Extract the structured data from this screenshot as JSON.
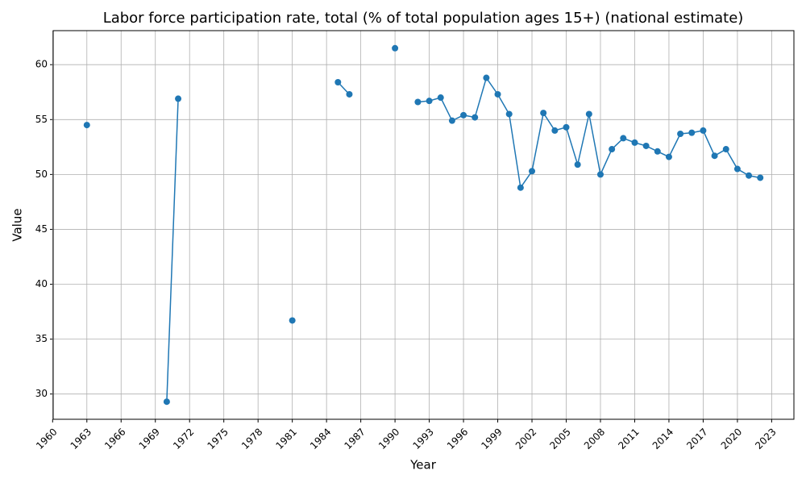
{
  "chart_data": {
    "type": "line",
    "title": "Labor force participation rate, total (% of total population ages 15+) (national estimate)",
    "xlabel": "Year",
    "ylabel": "Value",
    "x": [
      1963,
      1964,
      1965,
      1966,
      1967,
      1968,
      1969,
      1970,
      1971,
      1972,
      1973,
      1974,
      1975,
      1976,
      1977,
      1978,
      1979,
      1980,
      1981,
      1982,
      1983,
      1984,
      1985,
      1986,
      1987,
      1988,
      1989,
      1990,
      1991,
      1992,
      1993,
      1994,
      1995,
      1996,
      1997,
      1998,
      1999,
      2000,
      2001,
      2002,
      2003,
      2004,
      2005,
      2006,
      2007,
      2008,
      2009,
      2010,
      2011,
      2012,
      2013,
      2014,
      2015,
      2016,
      2017,
      2018,
      2019,
      2020,
      2021,
      2022
    ],
    "series": [
      {
        "name": "Value",
        "color": "#1f77b4",
        "values": [
          54.5,
          null,
          null,
          null,
          null,
          null,
          null,
          29.3,
          56.9,
          null,
          null,
          null,
          null,
          null,
          null,
          null,
          null,
          null,
          36.7,
          null,
          null,
          null,
          58.4,
          57.3,
          null,
          null,
          null,
          61.5,
          null,
          56.6,
          56.7,
          57.0,
          54.9,
          55.4,
          55.2,
          58.8,
          57.3,
          55.5,
          48.8,
          50.3,
          55.6,
          54.0,
          54.3,
          50.9,
          55.5,
          50.0,
          52.3,
          53.3,
          52.9,
          52.6,
          52.1,
          51.6,
          53.7,
          53.8,
          54.0,
          51.7,
          52.3,
          50.5,
          49.9,
          49.7
        ]
      }
    ],
    "xlim": [
      1960.05,
      2024.95
    ],
    "ylim": [
      27.7,
      63.1
    ],
    "xticks": [
      1960,
      1963,
      1966,
      1969,
      1972,
      1975,
      1978,
      1981,
      1984,
      1987,
      1990,
      1993,
      1996,
      1999,
      2002,
      2005,
      2008,
      2011,
      2014,
      2017,
      2020,
      2023
    ],
    "yticks": [
      30,
      35,
      40,
      45,
      50,
      55,
      60
    ],
    "grid": true
  }
}
